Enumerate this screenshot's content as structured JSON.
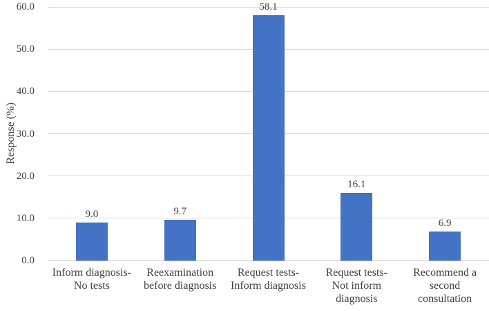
{
  "chart_data": {
    "type": "bar",
    "title": "",
    "xlabel": "",
    "ylabel": "Response (%)",
    "ylim": [
      0,
      60
    ],
    "y_tick_step": 10,
    "y_tick_labels": [
      "0.0",
      "10.0",
      "20.0",
      "30.0",
      "40.0",
      "50.0",
      "60.0"
    ],
    "grid": true,
    "legend": "none",
    "categories": [
      "Inform diagnosis-\nNo tests",
      "Reexamination\nbefore diagnosis",
      "Request tests-\nInform diagnosis",
      "Request tests-\nNot inform\ndiagnosis",
      "Recommend a\nsecond\nconsultation"
    ],
    "values": [
      9.0,
      9.7,
      58.1,
      16.1,
      6.9
    ],
    "value_labels": [
      "9.0",
      "9.7",
      "58.1",
      "16.1",
      "6.9"
    ]
  },
  "colors": {
    "bar": "#4472C4",
    "gridline": "#D9D9D9",
    "axis_line": "#BFBFBF",
    "text": "#404040"
  }
}
